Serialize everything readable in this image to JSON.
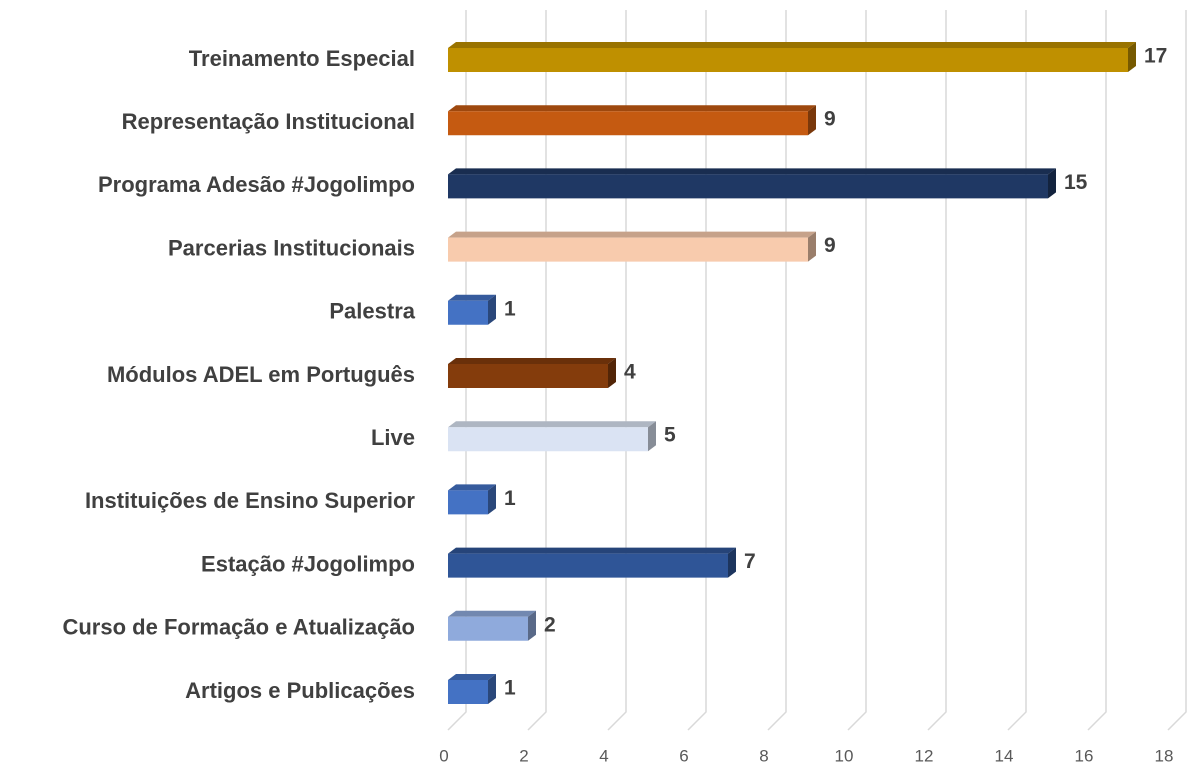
{
  "chart_data": {
    "type": "bar3d_horizontal",
    "categories": [
      "Treinamento Especial",
      "Representação Institucional",
      "Programa Adesão #Jogolimpo",
      "Parcerias Institucionais",
      "Palestra",
      "Módulos ADEL em Português",
      "Live",
      "Instituições de Ensino Superior",
      "Estação #Jogolimpo",
      "Curso de Formação e Atualização",
      "Artigos e Publicações"
    ],
    "values": [
      17,
      9,
      15,
      9,
      1,
      4,
      5,
      1,
      7,
      2,
      1
    ],
    "colors": [
      "#bf9000",
      "#c55a11",
      "#1f3864",
      "#f8cbad",
      "#4472c4",
      "#843c0c",
      "#dae3f3",
      "#4472c4",
      "#2f5597",
      "#8faadc",
      "#4472c4"
    ],
    "xlim": [
      0,
      18
    ],
    "xticks": [
      0,
      2,
      4,
      6,
      8,
      10,
      12,
      14,
      16,
      18
    ],
    "grid": true
  }
}
